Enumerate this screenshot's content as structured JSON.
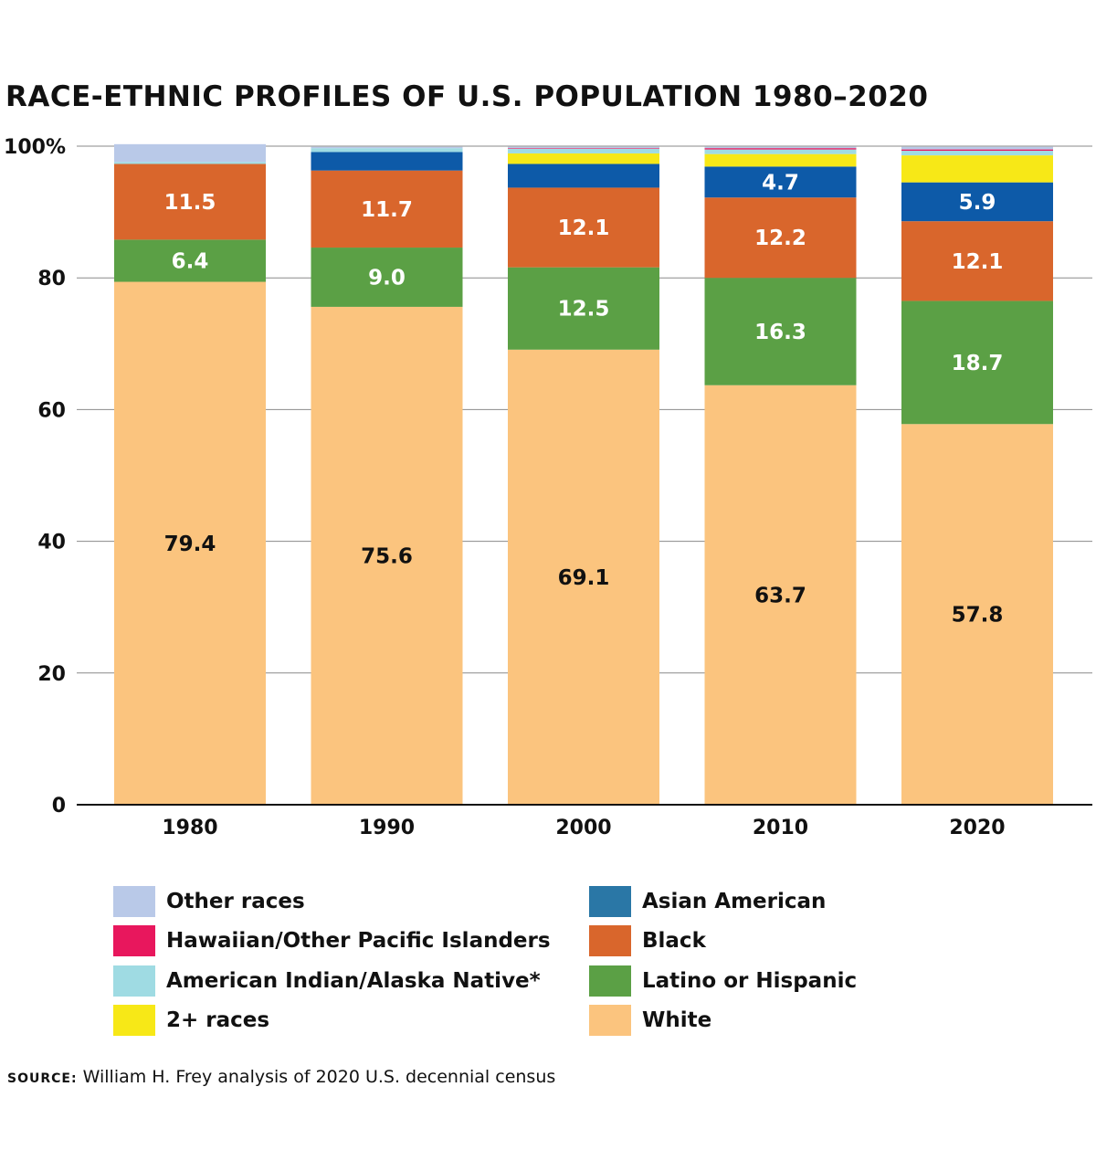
{
  "chart_data": {
    "type": "bar",
    "stacked": true,
    "title": "RACE-ETHNIC PROFILES OF U.S. POPULATION 1980–2020",
    "categories": [
      "1980",
      "1990",
      "2000",
      "2010",
      "2020"
    ],
    "ylim": [
      0,
      100
    ],
    "yticks": [
      {
        "value": 0,
        "label": "0"
      },
      {
        "value": 20,
        "label": "20"
      },
      {
        "value": 40,
        "label": "40"
      },
      {
        "value": 60,
        "label": "60"
      },
      {
        "value": 80,
        "label": "80"
      },
      {
        "value": 100,
        "label": "100%"
      }
    ],
    "grid": true,
    "legend_position": "bottom",
    "series": [
      {
        "name": "White",
        "color": "#fbc47e",
        "label_color": "#111111",
        "values": [
          79.4,
          75.6,
          69.1,
          63.7,
          57.8
        ],
        "labeled": [
          true,
          true,
          true,
          true,
          true
        ]
      },
      {
        "name": "Latino or Hispanic",
        "color": "#5ba045",
        "label_color": "#ffffff",
        "values": [
          6.4,
          9.0,
          12.5,
          16.3,
          18.7
        ],
        "labeled": [
          true,
          true,
          true,
          true,
          true
        ]
      },
      {
        "name": "Black",
        "color": "#d9662c",
        "label_color": "#ffffff",
        "values": [
          11.5,
          11.7,
          12.1,
          12.2,
          12.1
        ],
        "labeled": [
          true,
          true,
          true,
          true,
          true
        ]
      },
      {
        "name": "Asian American",
        "color": "#0d5aa8",
        "label_color": "#ffffff",
        "values": [
          0,
          2.8,
          3.6,
          4.7,
          5.9
        ],
        "labeled": [
          false,
          false,
          false,
          true,
          true
        ]
      },
      {
        "name": "2+ races",
        "color": "#f7e817",
        "label_color": "#111111",
        "values": [
          0,
          0,
          1.6,
          1.9,
          4.1
        ],
        "labeled": [
          false,
          false,
          false,
          false,
          false
        ]
      },
      {
        "name": "American Indian/Alaska Native*",
        "color": "#9fdbe3",
        "label_color": "#111111",
        "values": [
          0.3,
          0.6,
          0.7,
          0.7,
          0.7
        ],
        "labeled": [
          false,
          false,
          false,
          false,
          false
        ]
      },
      {
        "name": "Hawaiian/Other Pacific Islanders",
        "color": "#e8175d",
        "label_color": "#111111",
        "values": [
          0,
          0,
          0.1,
          0.2,
          0.2
        ],
        "labeled": [
          false,
          false,
          false,
          false,
          false
        ]
      },
      {
        "name": "Other races",
        "color": "#b9c9e8",
        "label_color": "#111111",
        "values": [
          2.7,
          0.2,
          0.2,
          0.2,
          0.4
        ],
        "labeled": [
          false,
          false,
          false,
          false,
          false
        ]
      }
    ]
  },
  "legend": {
    "items": [
      {
        "label": "Other races",
        "color": "#b9c9e8"
      },
      {
        "label": "Hawaiian/Other Pacific Islanders",
        "color": "#e8175d"
      },
      {
        "label": "American Indian/Alaska Native*",
        "color": "#9fdbe3"
      },
      {
        "label": "2+ races",
        "color": "#f7e817"
      },
      {
        "label": "Asian American",
        "color": "#2a77a6"
      },
      {
        "label": "Black",
        "color": "#d9662c"
      },
      {
        "label": "Latino or Hispanic",
        "color": "#5ba045"
      },
      {
        "label": "White",
        "color": "#fbc47e"
      }
    ]
  },
  "source": {
    "label": "Source:",
    "text": "William H. Frey analysis of 2020 U.S. decennial census"
  }
}
